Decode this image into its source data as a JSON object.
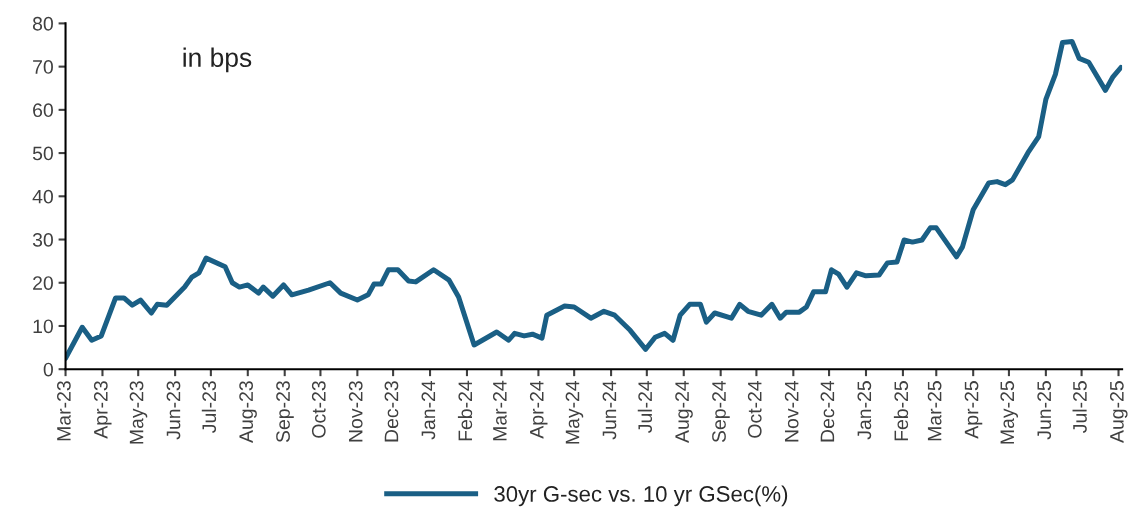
{
  "chart_data": {
    "type": "line",
    "annotations": [
      "in bps"
    ],
    "xlim": [
      "2023-03-01",
      "2025-08-04"
    ],
    "xticks": [
      {
        "value": "2023-03-01",
        "label": "Mar-23"
      },
      {
        "value": "2023-04-01",
        "label": "Apr-23"
      },
      {
        "value": "2023-05-01",
        "label": "May-23"
      },
      {
        "value": "2023-06-01",
        "label": "Jun-23"
      },
      {
        "value": "2023-07-01",
        "label": "Jul-23"
      },
      {
        "value": "2023-08-01",
        "label": "Aug-23"
      },
      {
        "value": "2023-09-01",
        "label": "Sep-23"
      },
      {
        "value": "2023-10-01",
        "label": "Oct-23"
      },
      {
        "value": "2023-11-01",
        "label": "Nov-23"
      },
      {
        "value": "2023-12-01",
        "label": "Dec-23"
      },
      {
        "value": "2024-01-01",
        "label": "Jan-24"
      },
      {
        "value": "2024-02-01",
        "label": "Feb-24"
      },
      {
        "value": "2024-03-01",
        "label": "Mar-24"
      },
      {
        "value": "2024-04-01",
        "label": "Apr-24"
      },
      {
        "value": "2024-05-01",
        "label": "May-24"
      },
      {
        "value": "2024-06-01",
        "label": "Jun-24"
      },
      {
        "value": "2024-07-01",
        "label": "Jul-24"
      },
      {
        "value": "2024-08-01",
        "label": "Aug-24"
      },
      {
        "value": "2024-09-01",
        "label": "Sep-24"
      },
      {
        "value": "2024-10-01",
        "label": "Oct-24"
      },
      {
        "value": "2024-11-01",
        "label": "Nov-24"
      },
      {
        "value": "2024-12-01",
        "label": "Dec-24"
      },
      {
        "value": "2025-01-01",
        "label": "Jan-25"
      },
      {
        "value": "2025-02-01",
        "label": "Feb-25"
      },
      {
        "value": "2025-03-01",
        "label": "Mar-25"
      },
      {
        "value": "2025-04-01",
        "label": "Apr-25"
      },
      {
        "value": "2025-05-01",
        "label": "May-25"
      },
      {
        "value": "2025-06-01",
        "label": "Jun-25"
      },
      {
        "value": "2025-07-01",
        "label": "Jul-25"
      },
      {
        "value": "2025-08-01",
        "label": "Aug-25"
      }
    ],
    "ylim": [
      0,
      80
    ],
    "yticks": [
      0,
      10,
      20,
      30,
      40,
      50,
      60,
      70,
      80
    ],
    "grid": false,
    "legend": "bottom",
    "x": [
      "2023-03-01",
      "2023-03-15",
      "2023-03-23",
      "2023-03-31",
      "2023-04-12",
      "2023-04-19",
      "2023-04-26",
      "2023-05-03",
      "2023-05-12",
      "2023-05-17",
      "2023-05-25",
      "2023-06-09",
      "2023-06-15",
      "2023-06-21",
      "2023-06-27",
      "2023-07-13",
      "2023-07-19",
      "2023-07-25",
      "2023-08-01",
      "2023-08-10",
      "2023-08-14",
      "2023-08-22",
      "2023-08-31",
      "2023-09-07",
      "2023-09-21",
      "2023-10-09",
      "2023-10-18",
      "2023-11-01",
      "2023-11-10",
      "2023-11-15",
      "2023-11-21",
      "2023-11-27",
      "2023-12-05",
      "2023-12-14",
      "2023-12-20",
      "2024-01-04",
      "2024-01-17",
      "2024-01-25",
      "2024-02-07",
      "2024-02-26",
      "2024-03-07",
      "2024-03-12",
      "2024-03-20",
      "2024-03-27",
      "2024-04-04",
      "2024-04-08",
      "2024-04-23",
      "2024-05-01",
      "2024-05-15",
      "2024-05-26",
      "2024-06-04",
      "2024-06-17",
      "2024-06-30",
      "2024-07-08",
      "2024-07-16",
      "2024-07-23",
      "2024-07-29",
      "2024-08-06",
      "2024-08-15",
      "2024-08-20",
      "2024-08-27",
      "2024-09-10",
      "2024-09-17",
      "2024-09-24",
      "2024-10-05",
      "2024-10-14",
      "2024-10-21",
      "2024-10-26",
      "2024-11-06",
      "2024-11-12",
      "2024-11-18",
      "2024-11-28",
      "2024-12-03",
      "2024-12-09",
      "2024-12-16",
      "2024-12-24",
      "2025-01-01",
      "2025-01-12",
      "2025-01-19",
      "2025-01-27",
      "2025-02-02",
      "2025-02-09",
      "2025-02-17",
      "2025-02-24",
      "2025-03-01",
      "2025-03-18",
      "2025-03-23",
      "2025-04-01",
      "2025-04-14",
      "2025-04-21",
      "2025-04-28",
      "2025-05-04",
      "2025-05-17",
      "2025-05-26",
      "2025-06-01",
      "2025-06-09",
      "2025-06-15",
      "2025-06-23",
      "2025-06-29",
      "2025-07-07",
      "2025-07-21",
      "2025-07-27",
      "2025-08-03"
    ],
    "series": [
      {
        "name": "30yr G-sec vs. 10 yr GSec(%)",
        "color": "#1a5f85",
        "values": [
          2.5,
          9.7,
          6.7,
          7.7,
          16.5,
          16.5,
          14.8,
          16,
          13,
          15,
          14.8,
          19,
          21.3,
          22.3,
          25.7,
          23.7,
          20,
          19,
          19.5,
          17.6,
          19,
          16.9,
          19.5,
          17.2,
          18.3,
          20,
          17.6,
          16,
          17.2,
          19.7,
          19.7,
          23,
          23,
          20.4,
          20.2,
          23,
          20.6,
          16.7,
          5.6,
          8.6,
          6.7,
          8.3,
          7.7,
          8.1,
          7.2,
          12.5,
          14.6,
          14.4,
          11.8,
          13.4,
          12.5,
          9,
          4.6,
          7.4,
          8.3,
          6.7,
          12.5,
          15,
          15,
          10.9,
          13,
          11.8,
          15,
          13.4,
          12.5,
          15,
          11.8,
          13.2,
          13.2,
          14.4,
          17.9,
          17.9,
          23,
          22,
          19,
          22.3,
          21.6,
          21.8,
          24.6,
          24.8,
          29.9,
          29.4,
          29.9,
          32.7,
          32.7,
          26,
          28.3,
          36.9,
          43.1,
          43.4,
          42.7,
          43.8,
          50.1,
          53.8,
          62.4,
          68.2,
          75.6,
          75.8,
          71.9,
          71,
          64.5,
          67.5,
          69.8
        ]
      }
    ]
  }
}
